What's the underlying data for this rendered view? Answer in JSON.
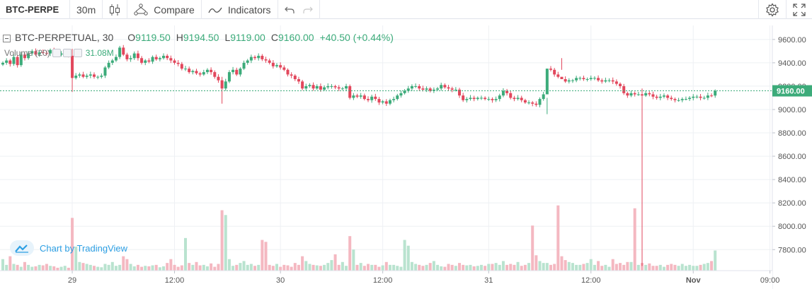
{
  "toolbar": {
    "symbol": "BTC-PERPE",
    "interval": "30m",
    "compare_label": "Compare",
    "indicators_label": "Indicators"
  },
  "legend": {
    "symbol": "BTC-PERPETUAL, 30",
    "o_label": "O",
    "o_value": "9119.50",
    "h_label": "H",
    "h_value": "9194.50",
    "l_label": "L",
    "l_value": "9119.00",
    "c_label": "C",
    "c_value": "9160.00",
    "change": "+40.50 (+0.44%)"
  },
  "volume_legend": {
    "label": "Volume (20)",
    "value": "31.08M"
  },
  "watermark": {
    "text": "Chart by TradingView"
  },
  "colors": {
    "up": "#3cab7a",
    "down": "#e2475c",
    "up_volume": "#b9e3cf",
    "down_volume": "#f4b8c1",
    "grid": "#eef0f4",
    "price_line": "#3cab7a"
  },
  "chart_data": {
    "type": "candlestick",
    "symbol": "BTC-PERPETUAL",
    "interval": "30",
    "last_price": 9160.0,
    "last_price_label": "9160.00",
    "ylim": [
      7620,
      9720
    ],
    "y_ticks": [
      9600,
      9400,
      9200,
      9000,
      8800,
      8600,
      8400,
      8200,
      8000,
      7800
    ],
    "y_tick_labels": [
      "9600.00",
      "9400.00",
      "9200.00",
      "9000.00",
      "8800.00",
      "8600.00",
      "8400.00",
      "8200.00",
      "8000.00",
      "7800.00"
    ],
    "x_ticks": [
      "29",
      "12:00",
      "30",
      "12:00",
      "31",
      "12:00",
      "Nov",
      "09:00"
    ],
    "x_tick_bold": [
      false,
      false,
      false,
      false,
      false,
      false,
      true,
      false
    ],
    "x_tick_bar_index": [
      19,
      47,
      76,
      104,
      133,
      161,
      189,
      210
    ],
    "close": [
      9400,
      9420,
      9390,
      9450,
      9380,
      9470,
      9440,
      9480,
      9500,
      9470,
      9490,
      9485,
      9480,
      9510,
      9490,
      9470,
      9480,
      9480,
      9460,
      9270,
      9290,
      9300,
      9280,
      9290,
      9300,
      9280,
      9280,
      9290,
      9360,
      9400,
      9420,
      9450,
      9530,
      9470,
      9430,
      9440,
      9480,
      9440,
      9400,
      9420,
      9410,
      9450,
      9430,
      9440,
      9460,
      9440,
      9420,
      9400,
      9390,
      9350,
      9350,
      9320,
      9330,
      9310,
      9300,
      9320,
      9340,
      9320,
      9280,
      9250,
      9180,
      9240,
      9320,
      9340,
      9300,
      9350,
      9400,
      9420,
      9450,
      9440,
      9460,
      9430,
      9420,
      9400,
      9370,
      9380,
      9360,
      9340,
      9300,
      9290,
      9260,
      9240,
      9180,
      9200,
      9210,
      9180,
      9200,
      9170,
      9190,
      9200,
      9200,
      9190,
      9180,
      9180,
      9200,
      9100,
      9120,
      9110,
      9120,
      9090,
      9080,
      9110,
      9090,
      9060,
      9070,
      9050,
      9080,
      9090,
      9120,
      9140,
      9160,
      9180,
      9200,
      9200,
      9180,
      9170,
      9180,
      9160,
      9170,
      9180,
      9210,
      9190,
      9180,
      9170,
      9170,
      9120,
      9080,
      9090,
      9100,
      9090,
      9100,
      9100,
      9090,
      9090,
      9080,
      9090,
      9120,
      9160,
      9140,
      9100,
      9090,
      9100,
      9080,
      9060,
      9060,
      9050,
      9040,
      9090,
      9130,
      9350,
      9340,
      9300,
      9280,
      9260,
      9240,
      9250,
      9250,
      9270,
      9270,
      9260,
      9260,
      9270,
      9270,
      9250,
      9240,
      9250,
      9250,
      9240,
      9220,
      9200,
      9140,
      9120,
      9140,
      9130,
      9130,
      9120,
      9140,
      9130,
      9110,
      9100,
      9110,
      9120,
      9100,
      9090,
      9080,
      9080,
      9090,
      9090,
      9100,
      9110,
      9110,
      9100,
      9100,
      9120,
      9119.5,
      9160
    ],
    "volume": [
      120,
      60,
      150,
      70,
      60,
      40,
      90,
      60,
      40,
      45,
      60,
      55,
      70,
      50,
      45,
      30,
      40,
      50,
      30,
      550,
      250,
      90,
      80,
      70,
      60,
      50,
      40,
      35,
      70,
      60,
      90,
      50,
      60,
      150,
      120,
      70,
      45,
      60,
      40,
      50,
      45,
      55,
      60,
      35,
      45,
      80,
      120,
      60,
      40,
      55,
      340,
      80,
      60,
      90,
      55,
      60,
      45,
      75,
      40,
      70,
      630,
      580,
      120,
      50,
      60,
      80,
      100,
      60,
      70,
      50,
      60,
      320,
      300,
      60,
      50,
      70,
      40,
      60,
      55,
      40,
      80,
      60,
      150,
      100,
      70,
      60,
      55,
      50,
      60,
      80,
      110,
      170,
      60,
      90,
      50,
      360,
      220,
      60,
      80,
      50,
      70,
      60,
      60,
      40,
      55,
      90,
      60,
      60,
      50,
      40,
      320,
      260,
      90,
      70,
      60,
      50,
      60,
      80,
      100,
      60,
      45,
      40,
      70,
      60,
      50,
      80,
      60,
      55,
      60,
      45,
      50,
      60,
      50,
      70,
      70,
      80,
      60,
      100,
      60,
      70,
      60,
      90,
      50,
      60,
      80,
      470,
      160,
      100,
      80,
      80,
      60,
      70,
      680,
      150,
      110,
      90,
      80,
      60,
      60,
      70,
      80,
      120,
      60,
      100,
      50,
      60,
      40,
      120,
      70,
      80,
      60,
      90,
      90,
      650,
      60,
      80,
      60,
      75,
      50,
      50,
      60,
      40,
      60,
      70,
      60,
      50,
      70,
      50,
      60,
      50,
      50,
      60,
      70,
      80,
      100,
      210
    ],
    "spike_wicks": [
      {
        "bar": 19,
        "high": 9520,
        "low": 9150
      },
      {
        "bar": 60,
        "high": 9280,
        "low": 9050
      },
      {
        "bar": 153,
        "high": 9440,
        "low": 9340
      },
      {
        "bar": 175,
        "high": 9180,
        "low": 7660
      },
      {
        "bar": 149,
        "high": 9100,
        "low": 8960
      }
    ]
  }
}
